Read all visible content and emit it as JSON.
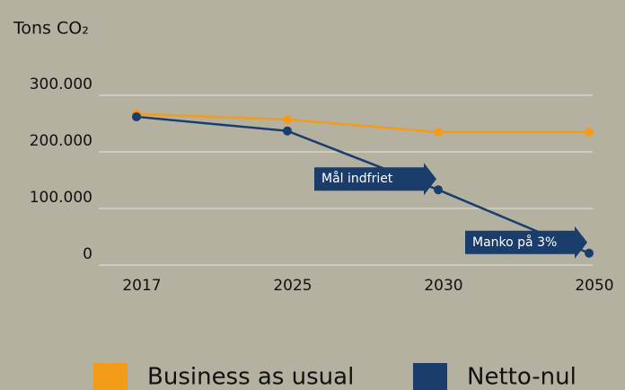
{
  "chart_data": {
    "type": "line",
    "y_label": "Tons CO₂",
    "categories": [
      "2017",
      "2025",
      "2030",
      "2050"
    ],
    "series": [
      {
        "name": "Business as usual",
        "color": "#f39c1a",
        "values": [
          267000,
          257000,
          235000,
          235000
        ]
      },
      {
        "name": "Netto-nul",
        "color": "#1a3d6b",
        "values": [
          262000,
          237000,
          133000,
          21000
        ]
      }
    ],
    "ylim": [
      0,
      300000
    ],
    "yticks": [
      0,
      {
        "value": 100000,
        "label": "100.000"
      },
      {
        "value": 200000,
        "label": "200.000"
      },
      {
        "value": 300000,
        "label": "300.000"
      }
    ],
    "grid": true,
    "annotations": [
      {
        "text": "Mål indfriet",
        "category": 2,
        "series": 1
      },
      {
        "text": "Manko på 3%",
        "category": 3,
        "series": 1
      }
    ]
  }
}
